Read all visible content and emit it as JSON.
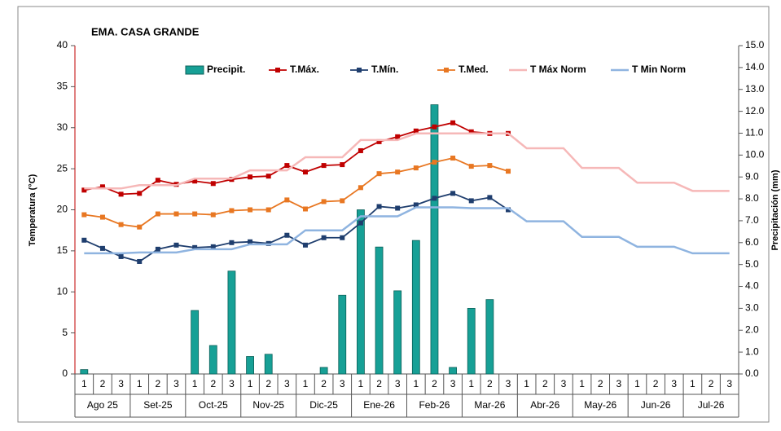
{
  "chart_data": {
    "type": "bar",
    "title": "EMA. CASA GRANDE",
    "y_label": "Temperatura (°C)",
    "y2_label": "Precipitación (mm)",
    "categories": [
      "1",
      "2",
      "3",
      "1",
      "2",
      "3",
      "1",
      "2",
      "3",
      "1",
      "2",
      "3",
      "1",
      "2",
      "3",
      "1",
      "2",
      "3",
      "1",
      "2",
      "3",
      "1",
      "2",
      "3",
      "1",
      "2",
      "3",
      "1",
      "2",
      "3",
      "1",
      "2",
      "3",
      "1",
      "2",
      "3"
    ],
    "groups": [
      "Ago 25",
      "Set-25",
      "Oct-25",
      "Nov-25",
      "Dic-25",
      "Ene-26",
      "Feb-26",
      "Mar-26",
      "Abr-26",
      "May-26",
      "Jun-26",
      "Jul-26"
    ],
    "ylim": [
      0,
      40
    ],
    "yticks": [
      0,
      5,
      10,
      15,
      20,
      25,
      30,
      35,
      40
    ],
    "y2lim": [
      0,
      15
    ],
    "y2ticks": [
      {
        "value": 0,
        "label": "0.0"
      },
      {
        "value": 1,
        "label": "1.0"
      },
      {
        "value": 2,
        "label": "2.0"
      },
      {
        "value": 3,
        "label": "3.0"
      },
      {
        "value": 4,
        "label": "4.0"
      },
      {
        "value": 5,
        "label": "5.0"
      },
      {
        "value": 6,
        "label": "6.0"
      },
      {
        "value": 7,
        "label": "7.0"
      },
      {
        "value": 8,
        "label": "8.0"
      },
      {
        "value": 9,
        "label": "9.0"
      },
      {
        "value": 10,
        "label": "10.0"
      },
      {
        "value": 11,
        "label": "11.0"
      },
      {
        "value": 12,
        "label": "12.0"
      },
      {
        "value": 13,
        "label": "13.0"
      },
      {
        "value": 14,
        "label": "14.0"
      },
      {
        "value": 15,
        "label": "15.0"
      }
    ],
    "legend": "top",
    "series": [
      {
        "name": "Precipit.",
        "type": "bar",
        "axis": "y2",
        "color": "#17a096",
        "values": [
          0.2,
          0,
          0,
          0,
          0,
          0,
          2.9,
          1.3,
          4.7,
          0.8,
          0.9,
          0,
          0,
          0.3,
          3.6,
          7.5,
          5.8,
          3.8,
          6.1,
          12.3,
          0.3,
          3.0,
          3.4,
          null,
          null,
          null,
          null,
          null,
          null,
          null,
          null,
          null,
          null,
          null,
          null,
          null
        ]
      },
      {
        "name": "T.Máx.",
        "type": "line",
        "marker": true,
        "color": "#c00000",
        "values": [
          22.4,
          22.8,
          21.9,
          22.0,
          23.6,
          23.1,
          23.5,
          23.2,
          23.7,
          24.0,
          24.1,
          25.4,
          24.6,
          25.4,
          25.5,
          27.2,
          28.3,
          28.9,
          29.6,
          30.1,
          30.6,
          29.5,
          29.3,
          29.3,
          null,
          null,
          null,
          null,
          null,
          null,
          null,
          null,
          null,
          null,
          null,
          null
        ]
      },
      {
        "name": "T.Mín.",
        "type": "line",
        "marker": true,
        "color": "#1f3e6e",
        "values": [
          16.3,
          15.3,
          14.3,
          13.7,
          15.2,
          15.7,
          15.4,
          15.5,
          16.0,
          16.1,
          15.9,
          16.9,
          15.7,
          16.6,
          16.6,
          18.4,
          20.4,
          20.2,
          20.6,
          21.4,
          22.0,
          21.1,
          21.5,
          20.0,
          null,
          null,
          null,
          null,
          null,
          null,
          null,
          null,
          null,
          null,
          null,
          null
        ]
      },
      {
        "name": "T.Med.",
        "type": "line",
        "marker": true,
        "color": "#e87722",
        "values": [
          19.4,
          19.1,
          18.2,
          17.9,
          19.5,
          19.5,
          19.5,
          19.4,
          19.9,
          20.0,
          20.0,
          21.2,
          20.1,
          21.0,
          21.1,
          22.7,
          24.4,
          24.6,
          25.1,
          25.8,
          26.3,
          25.3,
          25.4,
          24.7,
          null,
          null,
          null,
          null,
          null,
          null,
          null,
          null,
          null,
          null,
          null,
          null
        ]
      },
      {
        "name": "T Máx Norm",
        "type": "line",
        "marker": false,
        "color": "#f6b8b8",
        "values": [
          22.6,
          22.6,
          22.6,
          23.0,
          23.0,
          23.0,
          23.8,
          23.8,
          23.8,
          24.8,
          24.8,
          24.8,
          26.4,
          26.4,
          26.4,
          28.5,
          28.5,
          28.5,
          29.3,
          29.3,
          29.3,
          29.3,
          29.3,
          29.3,
          27.5,
          27.5,
          27.5,
          25.1,
          25.1,
          25.1,
          23.3,
          23.3,
          23.3,
          22.3,
          22.3,
          22.3
        ]
      },
      {
        "name": "T Min Norm",
        "type": "line",
        "marker": false,
        "color": "#8fb4e0",
        "values": [
          14.7,
          14.7,
          14.7,
          14.8,
          14.8,
          14.8,
          15.2,
          15.2,
          15.2,
          15.8,
          15.8,
          15.8,
          17.5,
          17.5,
          17.5,
          19.2,
          19.2,
          19.2,
          20.3,
          20.3,
          20.3,
          20.2,
          20.2,
          20.2,
          18.6,
          18.6,
          18.6,
          16.7,
          16.7,
          16.7,
          15.5,
          15.5,
          15.5,
          14.7,
          14.7,
          14.7
        ]
      }
    ]
  }
}
